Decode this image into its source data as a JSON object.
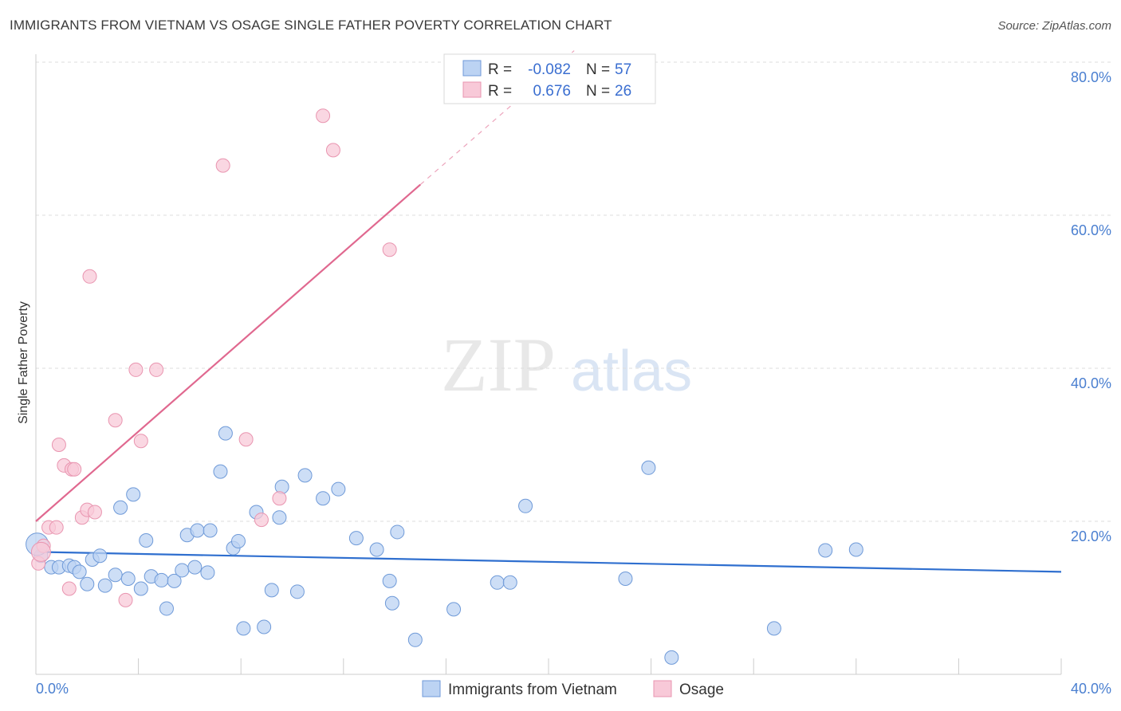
{
  "title": "IMMIGRANTS FROM VIETNAM VS OSAGE SINGLE FATHER POVERTY CORRELATION CHART",
  "source": "Source: ZipAtlas.com",
  "colors": {
    "blue_fill": "#bcd3f3",
    "blue_stroke": "#6f9ad8",
    "blue_line": "#2f6fcf",
    "pink_fill": "#f8c9d8",
    "pink_stroke": "#e995b0",
    "pink_line": "#e0688f",
    "grid": "#dddddd",
    "tick_text": "#4a7fd0"
  },
  "watermark": {
    "zip": "ZIP",
    "atlas": "atlas"
  },
  "legend": {
    "r_label": "R =",
    "n_label": "N =",
    "rows": [
      {
        "r": "-0.082",
        "n": "57"
      },
      {
        "r": "0.676",
        "n": "26"
      }
    ]
  },
  "chart_data": {
    "type": "scatter",
    "title": "IMMIGRANTS FROM VIETNAM VS OSAGE SINGLE FATHER POVERTY CORRELATION CHART",
    "xlabel": "",
    "ylabel": "Single Father Poverty",
    "xlim": [
      0,
      40
    ],
    "ylim": [
      0,
      80
    ],
    "x_ticks": [
      "0.0%",
      "40.0%"
    ],
    "y_ticks": [
      {
        "value": 20,
        "label": "20.0%"
      },
      {
        "value": 40,
        "label": "40.0%"
      },
      {
        "value": 60,
        "label": "60.0%"
      },
      {
        "value": 80,
        "label": "80.0%"
      }
    ],
    "series": [
      {
        "name": "Immigrants from Vietnam",
        "trend": {
          "x0": 0,
          "y0": 16.0,
          "x1": 40,
          "y1": 13.4
        },
        "points": [
          [
            0.2,
            15.5
          ],
          [
            0.6,
            14.0
          ],
          [
            0.9,
            14.0
          ],
          [
            1.3,
            14.2
          ],
          [
            1.5,
            14.0
          ],
          [
            1.7,
            13.4
          ],
          [
            2.0,
            11.8
          ],
          [
            2.2,
            15.0
          ],
          [
            2.5,
            15.5
          ],
          [
            2.7,
            11.6
          ],
          [
            3.1,
            13.0
          ],
          [
            3.3,
            21.8
          ],
          [
            3.6,
            12.5
          ],
          [
            3.8,
            23.5
          ],
          [
            4.1,
            11.2
          ],
          [
            4.3,
            17.5
          ],
          [
            4.5,
            12.8
          ],
          [
            4.9,
            12.3
          ],
          [
            5.1,
            8.6
          ],
          [
            5.4,
            12.2
          ],
          [
            5.7,
            13.6
          ],
          [
            5.9,
            18.2
          ],
          [
            6.2,
            14.0
          ],
          [
            6.3,
            18.8
          ],
          [
            6.7,
            13.3
          ],
          [
            6.8,
            18.8
          ],
          [
            7.2,
            26.5
          ],
          [
            7.4,
            31.5
          ],
          [
            7.7,
            16.5
          ],
          [
            7.9,
            17.4
          ],
          [
            8.1,
            6.0
          ],
          [
            8.6,
            21.2
          ],
          [
            8.9,
            6.2
          ],
          [
            9.2,
            11.0
          ],
          [
            9.5,
            20.5
          ],
          [
            9.6,
            24.5
          ],
          [
            10.2,
            10.8
          ],
          [
            10.5,
            26.0
          ],
          [
            11.2,
            23.0
          ],
          [
            11.8,
            24.2
          ],
          [
            12.5,
            17.8
          ],
          [
            13.3,
            16.3
          ],
          [
            13.8,
            12.2
          ],
          [
            13.9,
            9.3
          ],
          [
            14.1,
            18.6
          ],
          [
            14.8,
            4.5
          ],
          [
            16.3,
            8.5
          ],
          [
            18.0,
            12.0
          ],
          [
            18.5,
            12.0
          ],
          [
            19.1,
            22.0
          ],
          [
            23.0,
            12.5
          ],
          [
            23.9,
            27.0
          ],
          [
            24.8,
            2.2
          ],
          [
            28.8,
            6.0
          ],
          [
            30.8,
            16.2
          ],
          [
            32.0,
            16.3
          ],
          [
            0.05,
            17.0
          ]
        ]
      },
      {
        "name": "Osage",
        "trend": {
          "x0": 0,
          "y0": 20.0,
          "x1": 15.0,
          "y1": 64.0
        },
        "trend_dashed": {
          "x0": 15.0,
          "y0": 64.0,
          "x1": 21.0,
          "y1": 81.5
        },
        "points": [
          [
            0.1,
            14.5
          ],
          [
            0.3,
            16.8
          ],
          [
            0.5,
            19.2
          ],
          [
            0.8,
            19.2
          ],
          [
            0.9,
            30.0
          ],
          [
            1.1,
            27.3
          ],
          [
            1.3,
            11.2
          ],
          [
            1.4,
            26.8
          ],
          [
            1.5,
            26.8
          ],
          [
            1.8,
            20.5
          ],
          [
            2.0,
            21.5
          ],
          [
            2.1,
            52.0
          ],
          [
            2.3,
            21.2
          ],
          [
            3.1,
            33.2
          ],
          [
            3.5,
            9.7
          ],
          [
            3.9,
            39.8
          ],
          [
            4.1,
            30.5
          ],
          [
            4.7,
            39.8
          ],
          [
            7.3,
            66.5
          ],
          [
            8.2,
            30.7
          ],
          [
            8.8,
            20.2
          ],
          [
            9.5,
            23.0
          ],
          [
            11.2,
            73.0
          ],
          [
            11.6,
            68.5
          ],
          [
            13.8,
            55.5
          ],
          [
            0.2,
            16.0
          ]
        ]
      }
    ]
  },
  "bottom_legend": [
    {
      "label": "Immigrants from Vietnam"
    },
    {
      "label": "Osage"
    }
  ]
}
